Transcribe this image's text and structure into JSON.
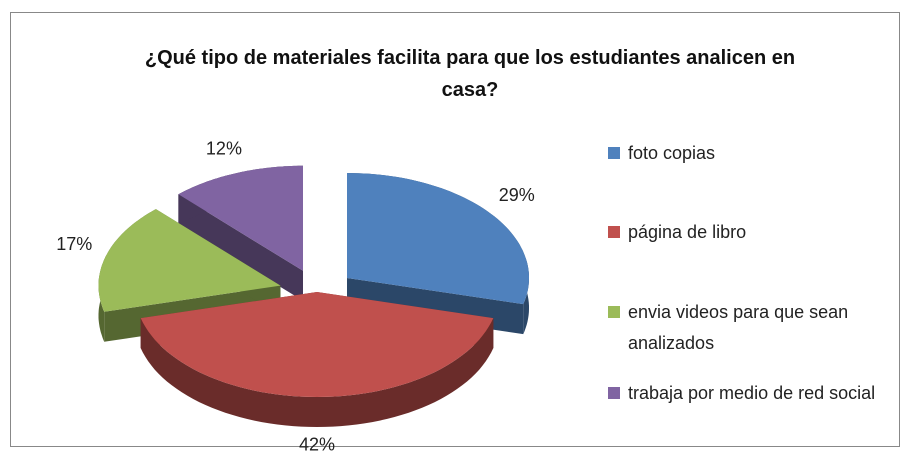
{
  "chart_data": {
    "type": "pie3d",
    "title": "¿Qué tipo de materiales facilita para que los estudiantes analicen en casa?",
    "categories": [
      "foto copias",
      "página de libro",
      "envia videos para que sean analizados",
      "trabaja por medio de red social"
    ],
    "values": [
      29,
      42,
      17,
      12
    ],
    "value_labels": [
      "29%",
      "42%",
      "17%",
      "12%"
    ],
    "colors": [
      "#4f81bd",
      "#c0504d",
      "#9bbb59",
      "#8064a2"
    ],
    "legend": "right"
  }
}
